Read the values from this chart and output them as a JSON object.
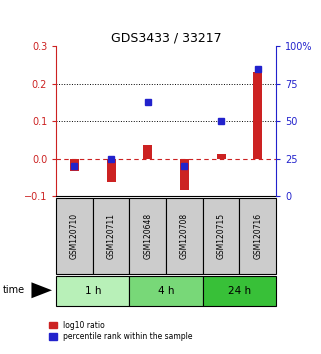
{
  "title": "GDS3433 / 33217",
  "samples": [
    "GSM120710",
    "GSM120711",
    "GSM120648",
    "GSM120708",
    "GSM120715",
    "GSM120716"
  ],
  "log10_ratio": [
    -0.033,
    -0.062,
    0.038,
    -0.082,
    0.012,
    0.23
  ],
  "percentile_rank_pct": [
    20,
    25,
    63,
    20,
    50,
    85
  ],
  "groups": [
    {
      "label": "1 h",
      "indices": [
        0,
        1
      ],
      "color": "#b8f0b8"
    },
    {
      "label": "4 h",
      "indices": [
        2,
        3
      ],
      "color": "#78d878"
    },
    {
      "label": "24 h",
      "indices": [
        4,
        5
      ],
      "color": "#38c038"
    }
  ],
  "ylim_left": [
    -0.1,
    0.3
  ],
  "ylim_right": [
    0,
    100
  ],
  "yticks_left": [
    -0.1,
    0.0,
    0.1,
    0.2,
    0.3
  ],
  "yticks_right": [
    0,
    25,
    50,
    75,
    100
  ],
  "hlines": [
    0.1,
    0.2
  ],
  "bar_color": "#cc2222",
  "dot_color": "#2222cc",
  "zero_line_color": "#cc2222",
  "sample_box_color": "#cccccc",
  "legend_labels": [
    "log10 ratio",
    "percentile rank within the sample"
  ],
  "time_label": "time",
  "bar_width": 0.25
}
